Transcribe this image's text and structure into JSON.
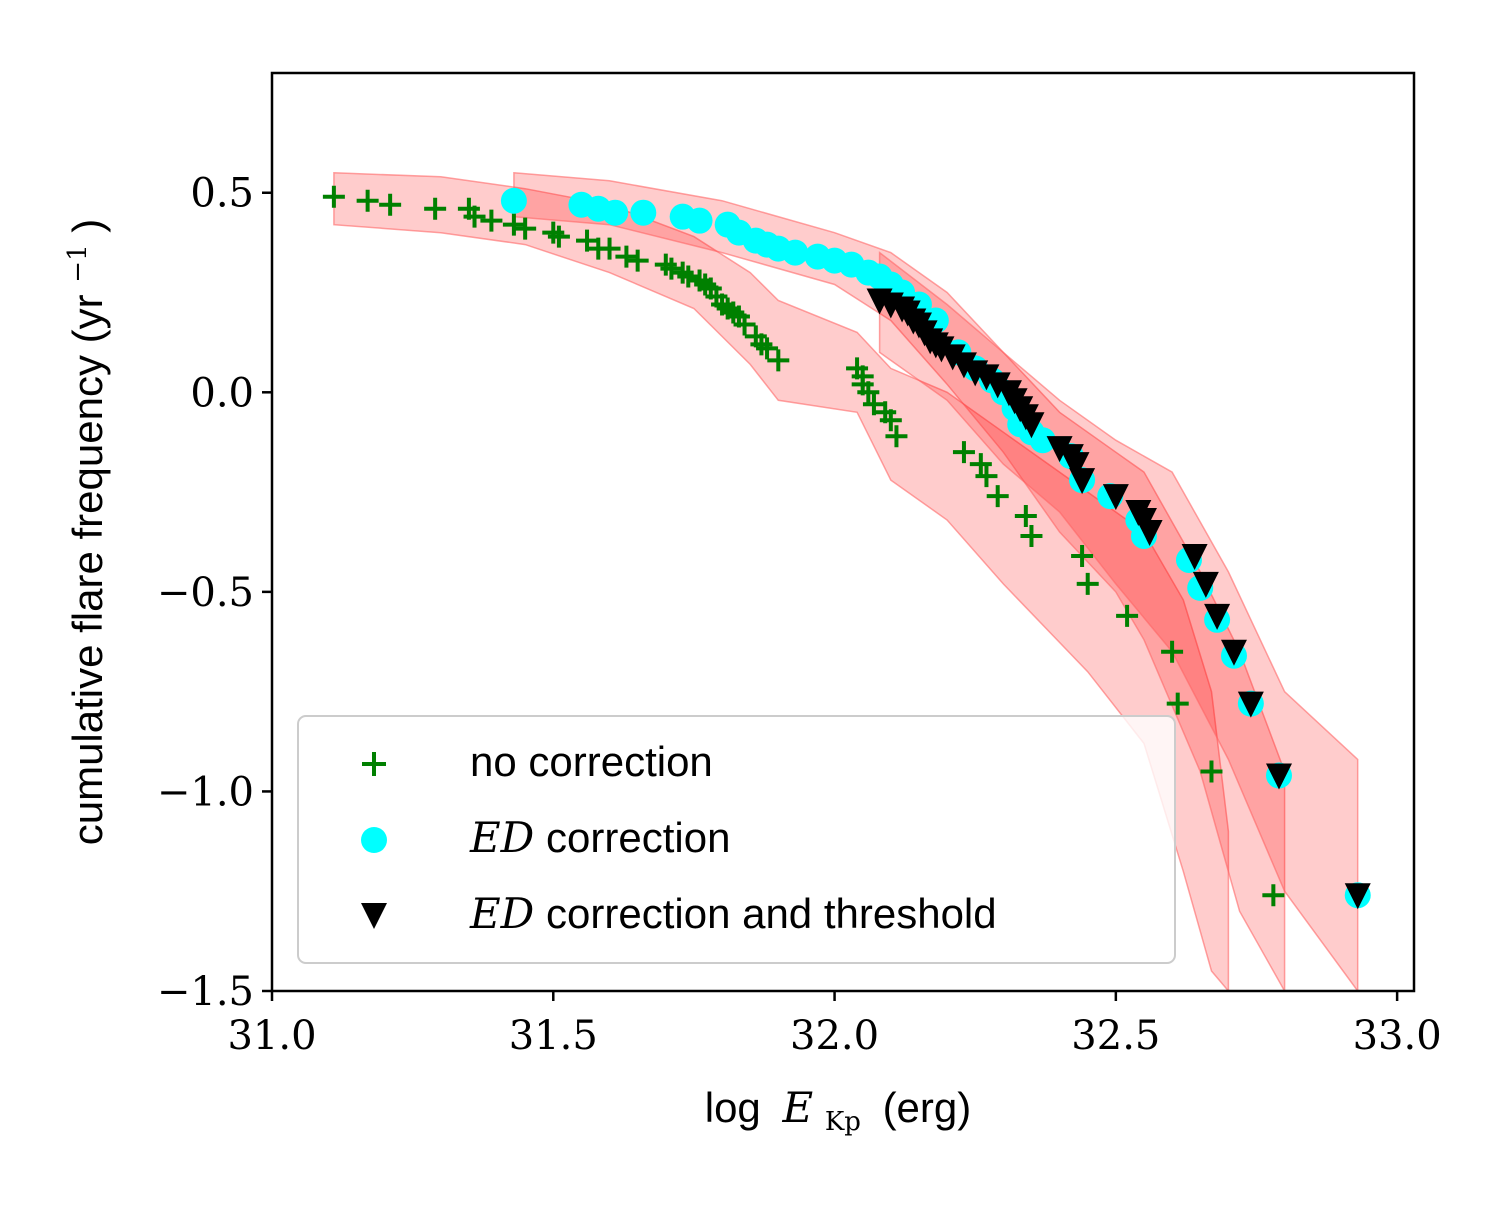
{
  "chart_data": {
    "type": "scatter",
    "title": "",
    "xlabel_prefix": "log",
    "xlabel_symbol": "E",
    "xlabel_subscript": "Kp",
    "xlabel_suffix": "(erg)",
    "ylabel": "cumulative flare frequency (yr",
    "ylabel_superscript": "−1",
    "ylabel_close": ")",
    "xlim": [
      31.0,
      33.03
    ],
    "ylim": [
      -1.5,
      0.8
    ],
    "xticks": [
      31.0,
      31.5,
      32.0,
      32.5,
      33.0
    ],
    "xtick_labels": [
      "31.0",
      "31.5",
      "32.0",
      "32.5",
      "33.0"
    ],
    "yticks": [
      0.5,
      0.0,
      -0.5,
      -1.0,
      -1.5
    ],
    "ytick_labels": [
      "0.5",
      "0.0",
      "−0.5",
      "−1.0",
      "−1.5"
    ],
    "grid": false,
    "legend_position": "bottom-left",
    "colors": {
      "no_correction": "#008000",
      "ed_correction": "#00ffff",
      "ed_threshold": "#000000",
      "band_fill": "#ff0000",
      "band_edge": "#ff6666"
    },
    "series": [
      {
        "name": "no correction",
        "marker": "plus",
        "x": [
          31.11,
          31.17,
          31.21,
          31.29,
          31.35,
          31.36,
          31.39,
          31.43,
          31.45,
          31.5,
          31.51,
          31.56,
          31.58,
          31.6,
          31.63,
          31.65,
          31.7,
          31.71,
          31.73,
          31.74,
          31.76,
          31.77,
          31.78,
          31.79,
          31.8,
          31.81,
          31.82,
          31.83,
          31.84,
          31.86,
          31.87,
          31.88,
          31.9,
          32.04,
          32.05,
          32.05,
          32.06,
          32.07,
          32.09,
          32.1,
          32.11,
          32.23,
          32.26,
          32.27,
          32.29,
          32.34,
          32.35,
          32.44,
          32.45,
          32.52,
          32.6,
          32.61,
          32.67,
          32.78
        ],
        "y": [
          0.49,
          0.48,
          0.47,
          0.46,
          0.46,
          0.44,
          0.43,
          0.42,
          0.41,
          0.4,
          0.39,
          0.38,
          0.36,
          0.36,
          0.34,
          0.33,
          0.32,
          0.31,
          0.3,
          0.29,
          0.28,
          0.27,
          0.26,
          0.24,
          0.22,
          0.21,
          0.2,
          0.19,
          0.17,
          0.14,
          0.12,
          0.11,
          0.08,
          0.06,
          0.04,
          0.02,
          0.0,
          -0.03,
          -0.05,
          -0.07,
          -0.11,
          -0.15,
          -0.18,
          -0.21,
          -0.26,
          -0.31,
          -0.36,
          -0.41,
          -0.48,
          -0.56,
          -0.65,
          -0.78,
          -0.95,
          -1.26
        ]
      },
      {
        "name": "ED correction",
        "legend_math": "ED",
        "legend_text": "correction",
        "marker": "circle",
        "x": [
          31.43,
          31.55,
          31.58,
          31.61,
          31.66,
          31.73,
          31.76,
          31.81,
          31.83,
          31.86,
          31.88,
          31.9,
          31.93,
          31.97,
          32.0,
          32.03,
          32.06,
          32.08,
          32.1,
          32.12,
          32.15,
          32.18,
          32.22,
          32.25,
          32.28,
          32.3,
          32.32,
          32.33,
          32.35,
          32.37,
          32.42,
          32.44,
          32.49,
          32.54,
          32.55,
          32.63,
          32.65,
          32.68,
          32.71,
          32.74,
          32.79,
          32.93
        ],
        "y": [
          0.48,
          0.47,
          0.46,
          0.45,
          0.45,
          0.44,
          0.43,
          0.42,
          0.4,
          0.38,
          0.37,
          0.36,
          0.35,
          0.34,
          0.33,
          0.32,
          0.3,
          0.29,
          0.27,
          0.25,
          0.22,
          0.18,
          0.1,
          0.06,
          0.03,
          0.0,
          -0.04,
          -0.08,
          -0.1,
          -0.12,
          -0.16,
          -0.22,
          -0.26,
          -0.32,
          -0.36,
          -0.42,
          -0.49,
          -0.57,
          -0.66,
          -0.78,
          -0.96,
          -1.26
        ]
      },
      {
        "name": "ED correction and threshold",
        "legend_math": "ED",
        "legend_text": "correction and threshold",
        "marker": "triangle-down",
        "x": [
          32.08,
          32.1,
          32.12,
          32.13,
          32.14,
          32.15,
          32.16,
          32.17,
          32.18,
          32.19,
          32.21,
          32.23,
          32.25,
          32.27,
          32.29,
          32.31,
          32.32,
          32.33,
          32.34,
          32.35,
          32.4,
          32.42,
          32.43,
          32.44,
          32.5,
          32.54,
          32.55,
          32.56,
          32.64,
          32.66,
          32.68,
          32.71,
          32.74,
          32.79,
          32.93
        ],
        "y": [
          0.23,
          0.22,
          0.21,
          0.2,
          0.18,
          0.17,
          0.15,
          0.13,
          0.12,
          0.11,
          0.09,
          0.07,
          0.05,
          0.04,
          0.02,
          0.0,
          -0.02,
          -0.04,
          -0.06,
          -0.08,
          -0.14,
          -0.16,
          -0.18,
          -0.22,
          -0.26,
          -0.3,
          -0.32,
          -0.35,
          -0.41,
          -0.48,
          -0.56,
          -0.65,
          -0.78,
          -0.96,
          -1.26
        ]
      }
    ],
    "bands": [
      {
        "name": "no-correction-band",
        "x": [
          31.11,
          31.3,
          31.45,
          31.6,
          31.75,
          31.85,
          31.9,
          32.04,
          32.1,
          32.2,
          32.3,
          32.45,
          32.55,
          32.62,
          32.67,
          32.7
        ],
        "upper": [
          0.55,
          0.54,
          0.51,
          0.47,
          0.39,
          0.3,
          0.23,
          0.15,
          0.06,
          0.0,
          -0.1,
          -0.25,
          -0.35,
          -0.52,
          -0.75,
          -1.1
        ],
        "lower": [
          0.42,
          0.4,
          0.37,
          0.3,
          0.21,
          0.07,
          -0.02,
          -0.05,
          -0.22,
          -0.32,
          -0.48,
          -0.7,
          -0.88,
          -1.2,
          -1.45,
          -1.5
        ]
      },
      {
        "name": "ed-correction-band",
        "x": [
          31.43,
          31.6,
          31.8,
          32.0,
          32.1,
          32.2,
          32.3,
          32.4,
          32.5,
          32.55,
          32.65,
          32.72,
          32.8
        ],
        "upper": [
          0.55,
          0.53,
          0.48,
          0.4,
          0.35,
          0.25,
          0.1,
          -0.05,
          -0.15,
          -0.2,
          -0.45,
          -0.65,
          -0.95
        ],
        "lower": [
          0.44,
          0.42,
          0.35,
          0.27,
          0.18,
          0.02,
          -0.15,
          -0.35,
          -0.5,
          -0.62,
          -0.95,
          -1.3,
          -1.5
        ]
      },
      {
        "name": "ed-threshold-band",
        "x": [
          32.08,
          32.2,
          32.3,
          32.4,
          32.5,
          32.6,
          32.7,
          32.8,
          32.93
        ],
        "upper": [
          0.35,
          0.22,
          0.1,
          -0.02,
          -0.12,
          -0.2,
          -0.45,
          -0.75,
          -0.92
        ],
        "lower": [
          0.1,
          -0.02,
          -0.18,
          -0.3,
          -0.48,
          -0.65,
          -0.92,
          -1.25,
          -1.5
        ]
      }
    ]
  }
}
